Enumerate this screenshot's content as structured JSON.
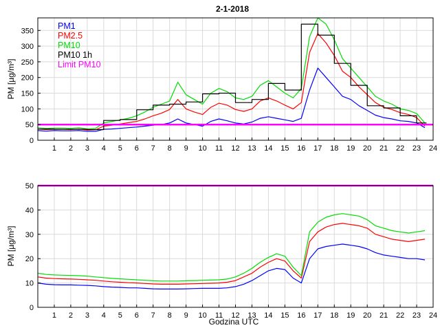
{
  "chart_data": [
    {
      "type": "line",
      "title": "2-1-2018",
      "xlabel": "",
      "ylabel": "PM [µg/m³]",
      "xlim": [
        0,
        24
      ],
      "ylim": [
        0,
        390
      ],
      "xticks": [
        "1",
        "2",
        "3",
        "4",
        "5",
        "6",
        "7",
        "8",
        "9",
        "10",
        "11",
        "12",
        "13",
        "14",
        "15",
        "16",
        "17",
        "18",
        "19",
        "20",
        "21",
        "22",
        "23",
        "24"
      ],
      "yticks": [
        "0",
        "50",
        "100",
        "150",
        "200",
        "250",
        "300",
        "350"
      ],
      "grid": true,
      "legend_position": "top-left",
      "x": [
        0.0,
        0.5,
        1.0,
        1.5,
        2.0,
        2.5,
        3.0,
        3.5,
        4.0,
        4.5,
        5.0,
        5.5,
        6.0,
        6.5,
        7.0,
        7.5,
        8.0,
        8.5,
        9.0,
        9.5,
        10.0,
        10.5,
        11.0,
        11.5,
        12.0,
        12.5,
        13.0,
        13.5,
        14.0,
        14.5,
        15.0,
        15.5,
        16.0,
        16.5,
        17.0,
        17.5,
        18.0,
        18.5,
        19.0,
        19.5,
        20.0,
        20.5,
        21.0,
        21.5,
        22.0,
        22.5,
        23.0,
        23.5
      ],
      "series": [
        {
          "name": "PM1",
          "color": "#0000ff",
          "values": [
            31,
            29,
            31,
            30,
            30,
            31,
            28,
            28,
            35,
            36,
            38,
            40,
            42,
            45,
            48,
            50,
            55,
            68,
            55,
            50,
            45,
            60,
            68,
            62,
            55,
            52,
            58,
            70,
            75,
            70,
            65,
            60,
            70,
            160,
            230,
            200,
            170,
            140,
            130,
            110,
            95,
            80,
            72,
            68,
            62,
            60,
            55,
            40
          ]
        },
        {
          "name": "PM2.5",
          "color": "#ff0000",
          "values": [
            36,
            34,
            35,
            35,
            34,
            36,
            32,
            33,
            45,
            48,
            52,
            56,
            60,
            68,
            78,
            86,
            98,
            130,
            100,
            90,
            82,
            105,
            118,
            112,
            98,
            92,
            100,
            125,
            135,
            125,
            112,
            100,
            120,
            280,
            340,
            310,
            270,
            220,
            200,
            170,
            145,
            120,
            105,
            98,
            88,
            82,
            72,
            45
          ]
        },
        {
          "name": "PM10",
          "color": "#00dd00",
          "values": [
            40,
            38,
            39,
            39,
            38,
            40,
            36,
            38,
            55,
            60,
            65,
            70,
            78,
            90,
            105,
            115,
            125,
            185,
            145,
            130,
            115,
            150,
            165,
            155,
            135,
            130,
            140,
            175,
            190,
            170,
            150,
            135,
            165,
            330,
            390,
            370,
            320,
            260,
            230,
            200,
            170,
            140,
            125,
            115,
            100,
            95,
            85,
            55
          ]
        },
        {
          "name": "PM10 1h",
          "color": "#000000",
          "values": [
            36,
            36,
            35,
            35,
            35,
            35,
            34,
            34,
            63,
            63,
            66,
            66,
            97,
            97,
            112,
            112,
            115,
            115,
            122,
            122,
            148,
            148,
            150,
            150,
            120,
            120,
            130,
            130,
            181,
            181,
            160,
            160,
            370,
            370,
            335,
            335,
            245,
            245,
            175,
            175,
            110,
            110,
            103,
            103,
            78,
            78,
            55,
            55
          ]
        },
        {
          "name": "Limit PM10",
          "color": "#ff00ff",
          "values": [
            50,
            50,
            50,
            50,
            50,
            50,
            50,
            50,
            50,
            50,
            50,
            50,
            50,
            50,
            50,
            50,
            50,
            50,
            50,
            50,
            50,
            50,
            50,
            50,
            50,
            50,
            50,
            50,
            50,
            50,
            50,
            50,
            50,
            50,
            50,
            50,
            50,
            50,
            50,
            50,
            50,
            50,
            50,
            50,
            50,
            50,
            50,
            50
          ]
        }
      ]
    },
    {
      "type": "line",
      "title": "",
      "xlabel": "Godzina UTC",
      "ylabel": "PM [µg/m³]",
      "xlim": [
        0,
        24
      ],
      "ylim": [
        0,
        50
      ],
      "xticks": [
        "1",
        "2",
        "3",
        "4",
        "5",
        "6",
        "7",
        "8",
        "9",
        "10",
        "11",
        "12",
        "13",
        "14",
        "15",
        "16",
        "17",
        "18",
        "19",
        "20",
        "21",
        "22",
        "23",
        "24"
      ],
      "yticks": [
        "0",
        "10",
        "20",
        "30",
        "40",
        "50"
      ],
      "grid": true,
      "x": [
        0.0,
        0.5,
        1.0,
        1.5,
        2.0,
        2.5,
        3.0,
        3.5,
        4.0,
        4.5,
        5.0,
        5.5,
        6.0,
        6.5,
        7.0,
        7.5,
        8.0,
        8.5,
        9.0,
        9.5,
        10.0,
        10.5,
        11.0,
        11.5,
        12.0,
        12.5,
        13.0,
        13.5,
        14.0,
        14.5,
        15.0,
        15.5,
        16.0,
        16.5,
        17.0,
        17.5,
        18.0,
        18.5,
        19.0,
        19.5,
        20.0,
        20.5,
        21.0,
        21.5,
        22.0,
        22.5,
        23.0,
        23.5
      ],
      "series": [
        {
          "name": "PM1",
          "color": "#0000ff",
          "values": [
            10,
            9.5,
            9.3,
            9.2,
            9.2,
            9.1,
            9,
            8.8,
            8.5,
            8.3,
            8.2,
            8,
            8,
            7.8,
            7.6,
            7.5,
            7.5,
            7.5,
            7.6,
            7.7,
            7.8,
            7.8,
            7.8,
            8,
            8.5,
            9.5,
            11,
            13,
            15,
            16,
            15.5,
            12,
            10,
            20,
            24,
            25,
            25.5,
            26,
            25.5,
            25,
            24,
            22.5,
            21.5,
            21,
            20.5,
            20,
            20,
            19.5
          ]
        },
        {
          "name": "PM2.5",
          "color": "#ff0000",
          "values": [
            12.5,
            12,
            11.8,
            11.7,
            11.6,
            11.5,
            11.3,
            11.1,
            10.8,
            10.5,
            10.3,
            10.1,
            10,
            9.8,
            9.6,
            9.5,
            9.5,
            9.5,
            9.6,
            9.7,
            9.8,
            9.9,
            10,
            10.3,
            11,
            12.5,
            14,
            16.5,
            18.5,
            20,
            19,
            15,
            12,
            27,
            31,
            33,
            34,
            34.5,
            34,
            33.5,
            32.5,
            30,
            29,
            28,
            27.5,
            27,
            27.5,
            28
          ]
        },
        {
          "name": "PM10",
          "color": "#00dd00",
          "values": [
            14,
            13.5,
            13.3,
            13.2,
            13.1,
            13,
            12.8,
            12.5,
            12.2,
            11.9,
            11.7,
            11.5,
            11.3,
            11.1,
            10.9,
            10.8,
            10.8,
            10.8,
            10.9,
            11,
            11.1,
            11.2,
            11.3,
            11.6,
            12.5,
            14,
            16,
            18.5,
            20.5,
            22,
            21,
            16.5,
            13,
            31,
            35,
            37,
            38,
            38.5,
            38,
            37.5,
            36,
            33.5,
            32.5,
            31.5,
            31,
            30.5,
            31,
            31.5
          ]
        },
        {
          "name": "Limit PM10",
          "color": "#ff00ff",
          "values": [
            50,
            50,
            50,
            50,
            50,
            50,
            50,
            50,
            50,
            50,
            50,
            50,
            50,
            50,
            50,
            50,
            50,
            50,
            50,
            50,
            50,
            50,
            50,
            50,
            50,
            50,
            50,
            50,
            50,
            50,
            50,
            50,
            50,
            50,
            50,
            50,
            50,
            50,
            50,
            50,
            50,
            50,
            50,
            50,
            50,
            50,
            50,
            50
          ]
        }
      ]
    }
  ]
}
